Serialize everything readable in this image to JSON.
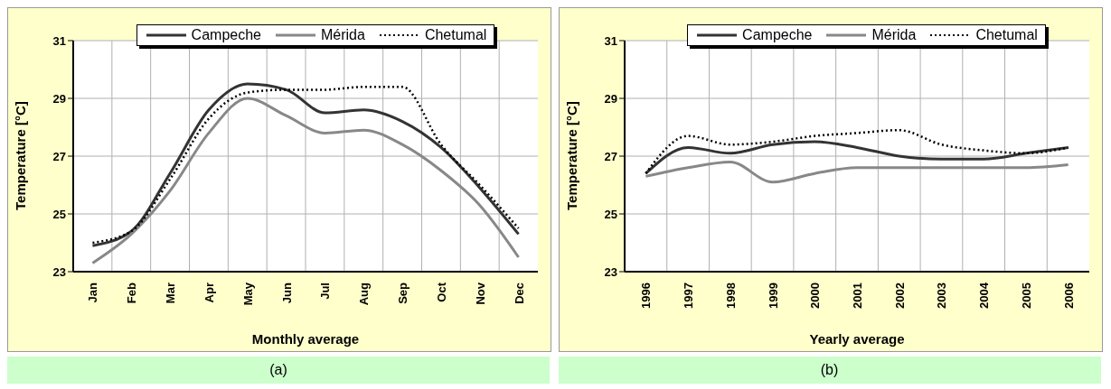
{
  "chart_data": [
    {
      "type": "line",
      "xlabel": "Monthly average",
      "ylabel": "Temperature [°C]",
      "annotations": [
        "(a)"
      ],
      "categories": [
        "Jan",
        "Feb",
        "Mar",
        "Apr",
        "May",
        "Jun",
        "Jul",
        "Aug",
        "Sep",
        "Oct",
        "Nov",
        "Dec"
      ],
      "series": [
        {
          "name": "Campeche",
          "color": "#333333",
          "line_style": "solid",
          "values": [
            23.9,
            24.4,
            26.4,
            28.6,
            29.5,
            29.3,
            28.5,
            28.6,
            28.2,
            27.3,
            25.9,
            24.3
          ]
        },
        {
          "name": "Mérida",
          "color": "#888888",
          "line_style": "solid",
          "values": [
            23.3,
            24.3,
            25.8,
            27.8,
            29.0,
            28.4,
            27.8,
            27.9,
            27.4,
            26.5,
            25.3,
            23.5
          ]
        },
        {
          "name": "Chetumal",
          "color": "#000000",
          "line_style": "dotted",
          "values": [
            24.0,
            24.4,
            26.2,
            28.3,
            29.2,
            29.3,
            29.3,
            29.4,
            29.4,
            27.4,
            26.0,
            24.5
          ]
        }
      ],
      "ylim": [
        23,
        31
      ],
      "yticks": [
        23,
        25,
        27,
        29,
        31
      ],
      "grid": true,
      "legend": "top",
      "marker": "none"
    },
    {
      "type": "line",
      "xlabel": "Yearly average",
      "ylabel": "Temperature [°C]",
      "annotations": [
        "(b)"
      ],
      "categories": [
        "1996",
        "1997",
        "1998",
        "1999",
        "2000",
        "2001",
        "2002",
        "2003",
        "2004",
        "2005",
        "2006"
      ],
      "series": [
        {
          "name": "Campeche",
          "color": "#333333",
          "line_style": "solid",
          "values": [
            26.4,
            27.3,
            27.1,
            27.4,
            27.5,
            27.3,
            27.0,
            26.9,
            26.9,
            27.1,
            27.3
          ]
        },
        {
          "name": "Mérida",
          "color": "#888888",
          "line_style": "solid",
          "values": [
            26.3,
            26.6,
            26.8,
            26.1,
            26.4,
            26.6,
            26.6,
            26.6,
            26.6,
            26.6,
            26.7
          ]
        },
        {
          "name": "Chetumal",
          "color": "#000000",
          "line_style": "dotted",
          "values": [
            26.4,
            27.7,
            27.4,
            27.5,
            27.7,
            27.8,
            27.9,
            27.4,
            27.2,
            27.1,
            27.3
          ]
        }
      ],
      "ylim": [
        23,
        31
      ],
      "yticks": [
        23,
        25,
        27,
        29,
        31
      ],
      "grid": true,
      "legend": "top",
      "marker": "none"
    }
  ]
}
